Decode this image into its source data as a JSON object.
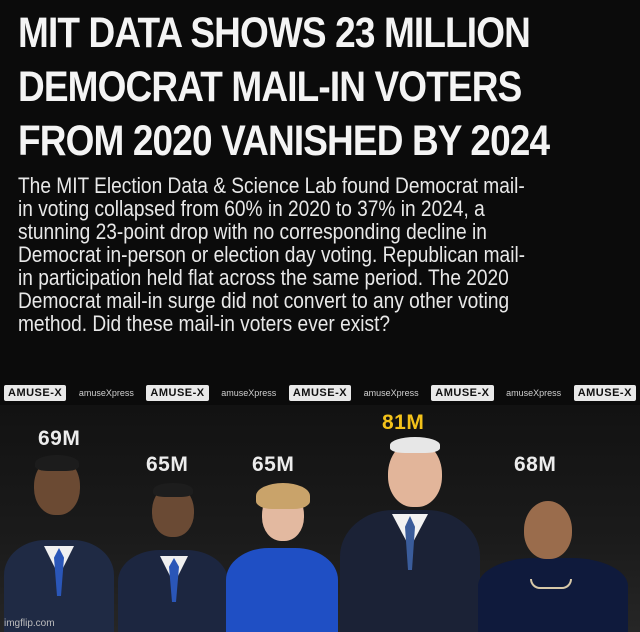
{
  "headline": {
    "lines": [
      "MIT DATA SHOWS 23 MILLION",
      "DEMOCRAT MAIL-IN VOTERS",
      "FROM 2020 VANISHED BY 2024"
    ]
  },
  "body": {
    "lines": [
      "The MIT Election Data & Science Lab found Democrat mail-",
      "in voting collapsed from 60% in 2020 to 37% in 2024, a",
      "stunning 23-point drop with no corresponding decline in",
      "Democrat in-person or election day voting. Republican mail-",
      "in participation held flat across the same period. The 2020",
      "Democrat mail-in surge did not convert to any other voting",
      "method. Did these mail-in voters ever exist?"
    ]
  },
  "brand_strip": {
    "logo_text": "AMUSE-X",
    "tagline": "amuseXpress"
  },
  "vote_counts": {
    "first": "69M",
    "second": "65M",
    "third": "65M",
    "fourth": "81M",
    "fifth": "68M"
  },
  "colors": {
    "background": "#0b0b0b",
    "highlight": "#f3c21a"
  },
  "watermark": "imgflip.com"
}
